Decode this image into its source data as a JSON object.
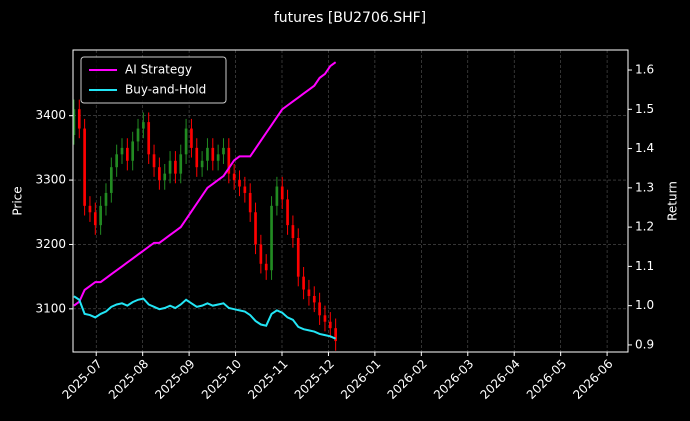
{
  "chart_data": {
    "type": "candlestick",
    "title": "futures [BU2706.SHF]",
    "ylabel": "Price",
    "y2label": "Return",
    "x": [
      -0.48,
      -0.365,
      -0.25,
      -0.135,
      -0.02,
      0.095,
      0.21,
      0.325,
      0.44,
      0.555,
      0.67,
      0.785,
      0.9,
      1.015,
      1.13,
      1.245,
      1.36,
      1.475,
      1.59,
      1.705,
      1.82,
      1.935,
      2.05,
      2.165,
      2.28,
      2.395,
      2.51,
      2.625,
      2.74,
      2.855,
      2.97,
      3.085,
      3.2,
      3.315,
      3.43,
      3.545,
      3.66,
      3.775,
      3.89,
      4.005,
      4.12,
      4.235,
      4.35,
      4.465,
      4.58,
      4.695,
      4.81,
      4.925,
      5.04,
      5.155
    ],
    "open": [
      3370,
      3410,
      3380,
      3260,
      3250,
      3230,
      3260,
      3280,
      3320,
      3340,
      3350,
      3330,
      3360,
      3380,
      3390,
      3340,
      3320,
      3300,
      3310,
      3330,
      3310,
      3340,
      3380,
      3350,
      3320,
      3330,
      3350,
      3330,
      3340,
      3350,
      3310,
      3300,
      3290,
      3280,
      3250,
      3200,
      3170,
      3160,
      3260,
      3290,
      3270,
      3230,
      3210,
      3150,
      3130,
      3120,
      3110,
      3090,
      3080,
      3070
    ],
    "high": [
      3425,
      3425,
      3395,
      3275,
      3265,
      3275,
      3295,
      3335,
      3355,
      3365,
      3365,
      3375,
      3395,
      3405,
      3405,
      3355,
      3335,
      3325,
      3345,
      3345,
      3355,
      3395,
      3395,
      3365,
      3345,
      3365,
      3365,
      3355,
      3365,
      3365,
      3325,
      3315,
      3305,
      3295,
      3265,
      3215,
      3185,
      3275,
      3305,
      3305,
      3285,
      3245,
      3225,
      3165,
      3145,
      3135,
      3125,
      3105,
      3095,
      3085
    ],
    "low": [
      3355,
      3365,
      3245,
      3235,
      3215,
      3215,
      3245,
      3265,
      3305,
      3325,
      3315,
      3315,
      3345,
      3365,
      3325,
      3305,
      3285,
      3285,
      3295,
      3295,
      3295,
      3325,
      3335,
      3305,
      3305,
      3315,
      3315,
      3315,
      3325,
      3295,
      3285,
      3275,
      3265,
      3235,
      3185,
      3155,
      3145,
      3145,
      3245,
      3255,
      3215,
      3195,
      3135,
      3115,
      3105,
      3095,
      3075,
      3065,
      3055,
      3035
    ],
    "close": [
      3410,
      3380,
      3260,
      3250,
      3230,
      3260,
      3280,
      3320,
      3340,
      3350,
      3330,
      3360,
      3380,
      3390,
      3340,
      3320,
      3300,
      3310,
      3330,
      3310,
      3340,
      3380,
      3350,
      3320,
      3330,
      3350,
      3330,
      3340,
      3350,
      3310,
      3300,
      3290,
      3280,
      3250,
      3200,
      3170,
      3160,
      3260,
      3290,
      3270,
      3230,
      3210,
      3150,
      3130,
      3120,
      3110,
      3090,
      3080,
      3070,
      3050
    ],
    "up_color": "#228b22",
    "down_color": "#ff0000",
    "series": [
      {
        "name": "AI Strategy",
        "color": "#ff00ff",
        "axis": "y2",
        "values": [
          1.0,
          1.01,
          1.04,
          1.05,
          1.06,
          1.06,
          1.07,
          1.08,
          1.09,
          1.1,
          1.11,
          1.12,
          1.13,
          1.14,
          1.15,
          1.16,
          1.16,
          1.17,
          1.18,
          1.19,
          1.2,
          1.22,
          1.24,
          1.26,
          1.28,
          1.3,
          1.31,
          1.32,
          1.33,
          1.35,
          1.37,
          1.38,
          1.38,
          1.38,
          1.4,
          1.42,
          1.44,
          1.46,
          1.48,
          1.5,
          1.51,
          1.52,
          1.53,
          1.54,
          1.55,
          1.56,
          1.58,
          1.59,
          1.61,
          1.62
        ]
      },
      {
        "name": "Buy-and-Hold",
        "color": "#22e5f5",
        "axis": "y2",
        "values": [
          1.024,
          1.015,
          0.979,
          0.976,
          0.97,
          0.979,
          0.985,
          0.997,
          1.003,
          1.006,
          1.0,
          1.009,
          1.015,
          1.018,
          1.003,
          0.997,
          0.991,
          0.994,
          1.0,
          0.994,
          1.003,
          1.015,
          1.006,
          0.997,
          1.0,
          1.006,
          1.0,
          1.003,
          1.006,
          0.994,
          0.991,
          0.988,
          0.985,
          0.976,
          0.961,
          0.952,
          0.949,
          0.979,
          0.988,
          0.982,
          0.97,
          0.964,
          0.946,
          0.94,
          0.937,
          0.934,
          0.928,
          0.925,
          0.922,
          0.916
        ]
      }
    ],
    "xlim": [
      -0.5,
      11.45
    ],
    "xticks": [
      {
        "value": 0,
        "label": "2025-07"
      },
      {
        "value": 1,
        "label": "2025-08"
      },
      {
        "value": 2,
        "label": "2025-09"
      },
      {
        "value": 3,
        "label": "2025-10"
      },
      {
        "value": 4,
        "label": "2025-11"
      },
      {
        "value": 5,
        "label": "2025-12"
      },
      {
        "value": 6,
        "label": "2026-01"
      },
      {
        "value": 7,
        "label": "2026-02"
      },
      {
        "value": 8,
        "label": "2026-03"
      },
      {
        "value": 9,
        "label": "2026-04"
      },
      {
        "value": 10,
        "label": "2026-05"
      },
      {
        "value": 11,
        "label": "2026-06"
      }
    ],
    "ylim": [
      3033,
      3502
    ],
    "yticks": [
      3100,
      3200,
      3300,
      3400
    ],
    "y2lim": [
      0.882,
      1.651
    ],
    "y2ticks": [
      0.9,
      {
        "value": 1,
        "label": "1.0"
      },
      1.1,
      1.2,
      1.3,
      1.4,
      1.5,
      1.6
    ],
    "grid": true,
    "legend": "upper left"
  }
}
